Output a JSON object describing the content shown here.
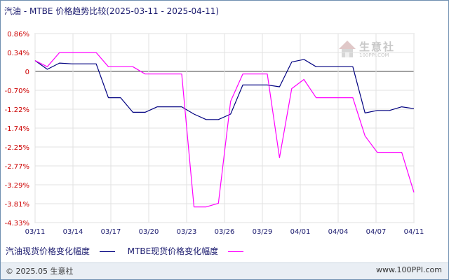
{
  "title": "汽油 - MTBE 价格趋势比较(2025-03-11 - 2025-04-11)",
  "watermark": {
    "text": "生意社",
    "sub": "100PPI.COM",
    "icon": "house-logo-icon"
  },
  "footer": {
    "left": "© 2025.05 生意社",
    "right": "www.100PPI.com"
  },
  "colors": {
    "series1": "#000080",
    "series2": "#ff00ff",
    "zero_line": "#444444",
    "grid": "#e2e2e2",
    "axis_text": "#cc0000"
  },
  "chart_data": {
    "type": "line",
    "x_ticks": [
      "03/11",
      "03/14",
      "03/17",
      "03/20",
      "03/23",
      "03/26",
      "03/29",
      "04/01",
      "04/04",
      "04/07",
      "04/11"
    ],
    "y_ticks": [
      "0.86%",
      "0.34%",
      "0",
      "-0.70%",
      "-1.22%",
      "-1.74%",
      "-2.25%",
      "-2.77%",
      "-3.29%",
      "-3.81%",
      "-4.33%"
    ],
    "ylim": [
      -4.33,
      0.86
    ],
    "grid": true,
    "legend_position": "bottom",
    "x": [
      "03/11",
      "03/12",
      "03/13",
      "03/14",
      "03/15",
      "03/16",
      "03/17",
      "03/18",
      "03/19",
      "03/20",
      "03/21",
      "03/22",
      "03/23",
      "03/24",
      "03/25",
      "03/26",
      "03/27",
      "03/28",
      "03/29",
      "03/30",
      "03/31",
      "04/01",
      "04/02",
      "04/03",
      "04/04",
      "04/05",
      "04/06",
      "04/07",
      "04/08",
      "04/09",
      "04/10",
      "04/11"
    ],
    "series": [
      {
        "name": "汽油现货价格变化幅度",
        "values": [
          0.12,
          -0.12,
          0.05,
          0.03,
          0.03,
          0.03,
          -0.9,
          -0.9,
          -1.3,
          -1.3,
          -1.15,
          -1.15,
          -1.15,
          -1.35,
          -1.5,
          -1.5,
          -1.35,
          -0.55,
          -0.55,
          -0.55,
          -0.6,
          0.08,
          0.15,
          -0.05,
          -0.05,
          -0.05,
          -0.05,
          -1.32,
          -1.25,
          -1.25,
          -1.15,
          -1.2
        ]
      },
      {
        "name": "MTBE现货价格变化幅度",
        "values": [
          0.12,
          -0.05,
          0.34,
          0.34,
          0.34,
          0.34,
          -0.05,
          -0.05,
          -0.05,
          -0.25,
          -0.25,
          -0.25,
          -0.25,
          -3.9,
          -3.9,
          -3.8,
          -1.0,
          -0.25,
          -0.25,
          -0.25,
          -2.55,
          -0.65,
          -0.4,
          -0.9,
          -0.9,
          -0.9,
          -0.9,
          -1.95,
          -2.4,
          -2.4,
          -2.4,
          -3.5
        ]
      }
    ]
  }
}
